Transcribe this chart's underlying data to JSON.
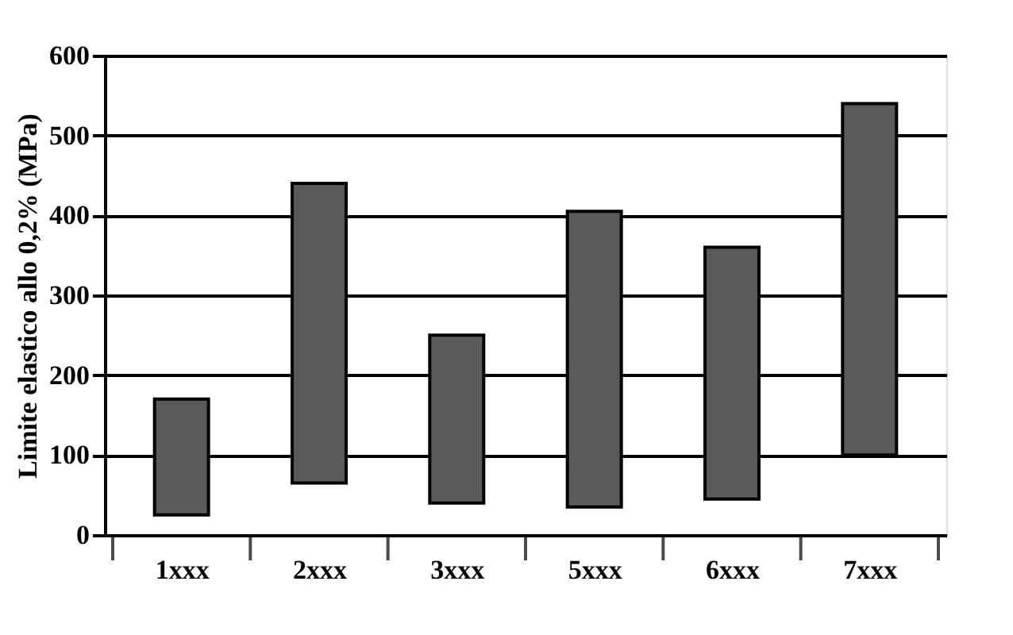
{
  "chart_data": {
    "type": "bar",
    "ylabel": "Limite elastico allo 0,2% (MPa)",
    "categories": [
      "1xxx",
      "2xxx",
      "3xxx",
      "5xxx",
      "6xxx",
      "7xxx"
    ],
    "base": [
      25,
      65,
      40,
      35,
      45,
      100
    ],
    "values": [
      145,
      375,
      210,
      370,
      315,
      440
    ],
    "color": "#5a5a5a",
    "ylim": [
      0,
      600
    ],
    "yticks": [
      0,
      100,
      200,
      300,
      400,
      500,
      600
    ],
    "grid": "y"
  }
}
